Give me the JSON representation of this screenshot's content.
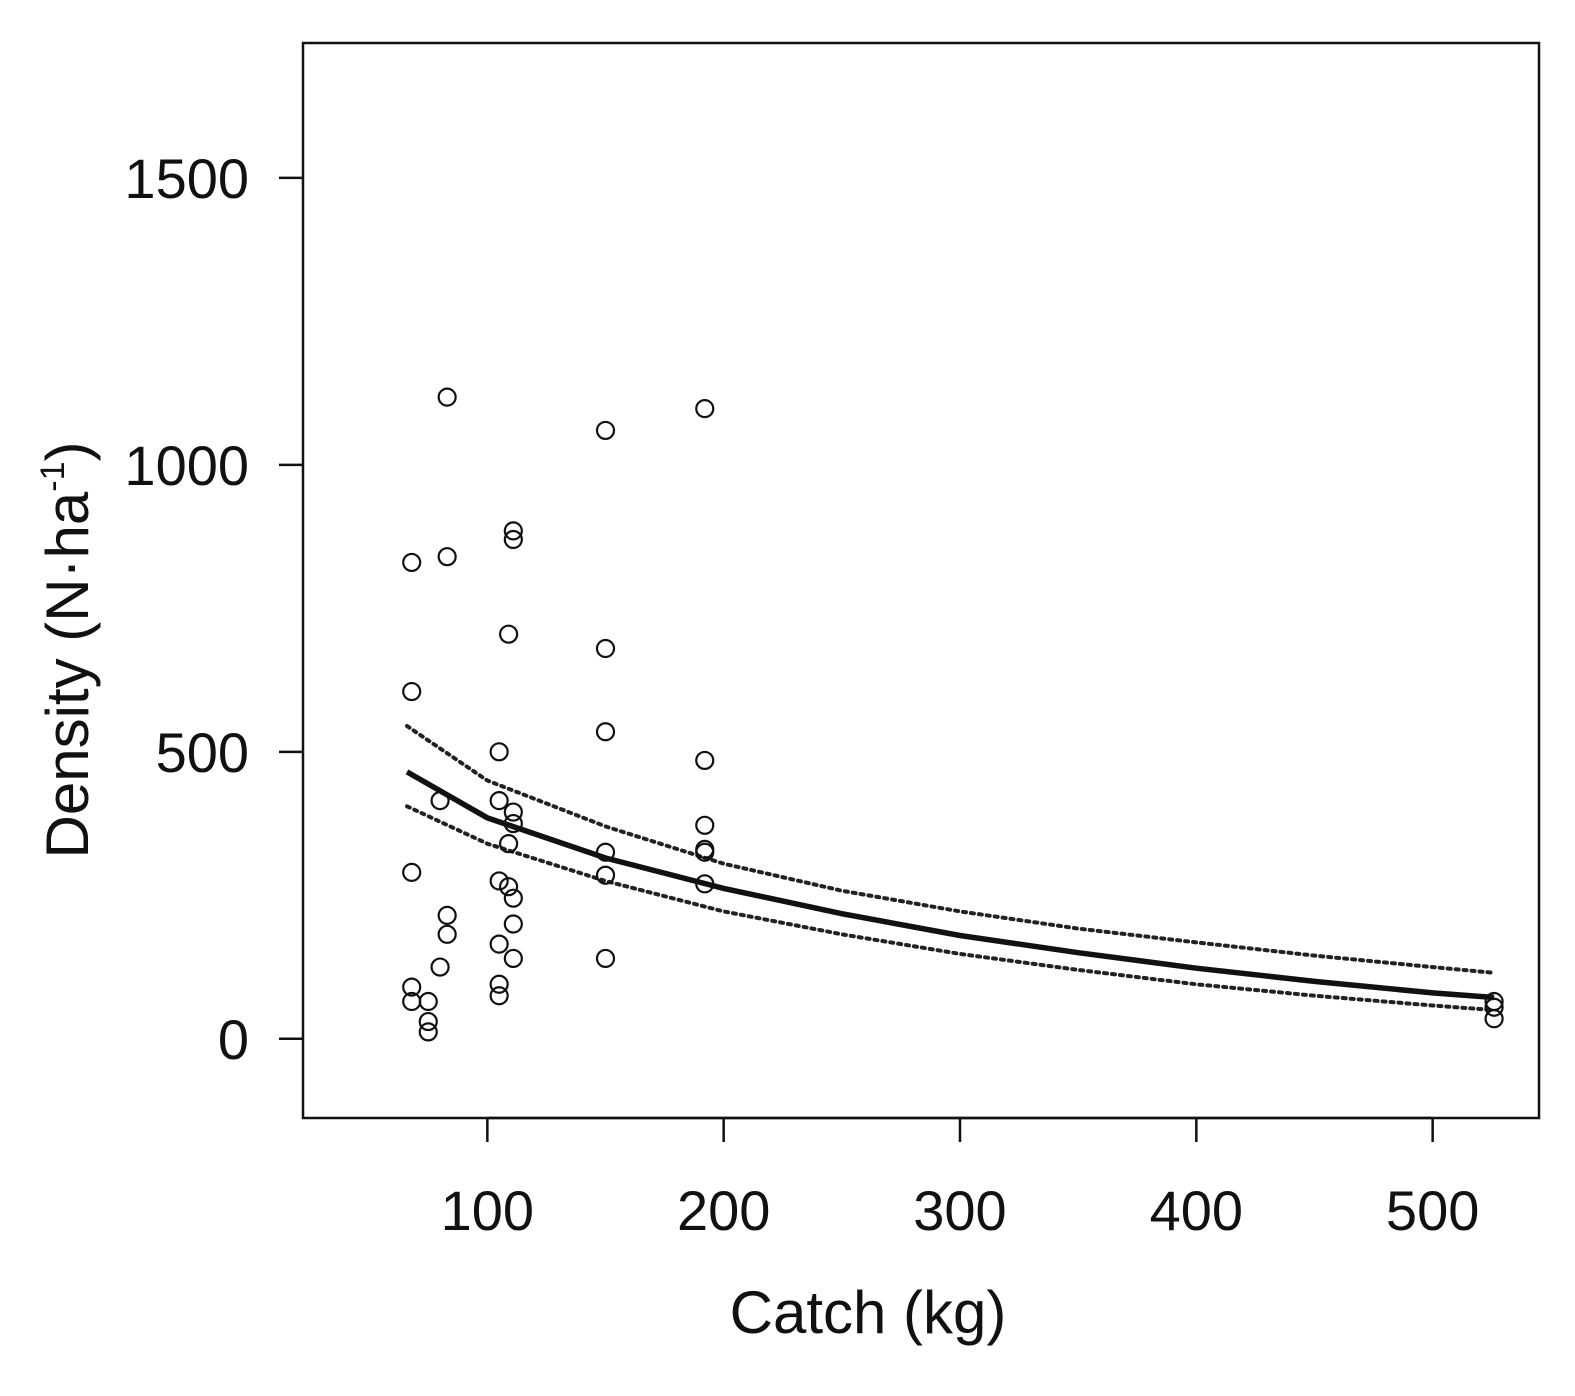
{
  "chart_data": {
    "type": "scatter",
    "xlabel": "Catch (kg)",
    "ylabel": {
      "main": "Density (N·ha",
      "sup": "-1",
      "close": ")"
    },
    "xlim": [
      22,
      545
    ],
    "ylim": [
      -138,
      1735
    ],
    "xticks": [
      100,
      200,
      300,
      400,
      500
    ],
    "yticks": [
      0,
      500,
      1000,
      1500
    ],
    "grid": false,
    "legend": "none",
    "points": [
      {
        "x": 83,
        "y": 1118
      },
      {
        "x": 83,
        "y": 840
      },
      {
        "x": 83,
        "y": 215
      },
      {
        "x": 83,
        "y": 182
      },
      {
        "x": 68,
        "y": 830
      },
      {
        "x": 68,
        "y": 605
      },
      {
        "x": 68,
        "y": 290
      },
      {
        "x": 68,
        "y": 90
      },
      {
        "x": 68,
        "y": 65
      },
      {
        "x": 75,
        "y": 65
      },
      {
        "x": 75,
        "y": 30
      },
      {
        "x": 75,
        "y": 12
      },
      {
        "x": 80,
        "y": 415
      },
      {
        "x": 80,
        "y": 125
      },
      {
        "x": 105,
        "y": 500
      },
      {
        "x": 105,
        "y": 415
      },
      {
        "x": 105,
        "y": 275
      },
      {
        "x": 105,
        "y": 165
      },
      {
        "x": 105,
        "y": 95
      },
      {
        "x": 105,
        "y": 75
      },
      {
        "x": 109,
        "y": 705
      },
      {
        "x": 109,
        "y": 340
      },
      {
        "x": 109,
        "y": 265
      },
      {
        "x": 111,
        "y": 885
      },
      {
        "x": 111,
        "y": 870
      },
      {
        "x": 111,
        "y": 395
      },
      {
        "x": 111,
        "y": 375
      },
      {
        "x": 111,
        "y": 245
      },
      {
        "x": 111,
        "y": 200
      },
      {
        "x": 111,
        "y": 140
      },
      {
        "x": 150,
        "y": 1060
      },
      {
        "x": 150,
        "y": 680
      },
      {
        "x": 150,
        "y": 535
      },
      {
        "x": 150,
        "y": 325
      },
      {
        "x": 150,
        "y": 285
      },
      {
        "x": 150,
        "y": 140
      },
      {
        "x": 192,
        "y": 1098
      },
      {
        "x": 192,
        "y": 485
      },
      {
        "x": 192,
        "y": 372
      },
      {
        "x": 192,
        "y": 330
      },
      {
        "x": 192,
        "y": 325
      },
      {
        "x": 192,
        "y": 270
      },
      {
        "x": 526,
        "y": 65
      },
      {
        "x": 526,
        "y": 55
      },
      {
        "x": 526,
        "y": 35
      }
    ],
    "fit_line": {
      "style": "solid",
      "x": [
        66,
        100,
        150,
        200,
        250,
        300,
        350,
        400,
        450,
        500,
        526
      ],
      "y": [
        465,
        385,
        315,
        262,
        218,
        180,
        150,
        123,
        100,
        80,
        72
      ]
    },
    "ci_upper": {
      "style": "dotted",
      "x": [
        66,
        100,
        150,
        200,
        250,
        300,
        350,
        400,
        450,
        500,
        526
      ],
      "y": [
        545,
        450,
        370,
        305,
        258,
        222,
        192,
        168,
        145,
        125,
        115
      ]
    },
    "ci_lower": {
      "style": "dotted",
      "x": [
        66,
        100,
        150,
        200,
        250,
        300,
        350,
        400,
        450,
        500,
        526
      ],
      "y": [
        405,
        340,
        275,
        222,
        182,
        148,
        120,
        95,
        75,
        58,
        50
      ]
    }
  }
}
